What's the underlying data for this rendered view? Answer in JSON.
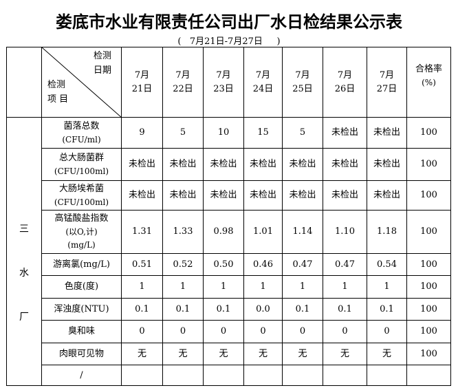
{
  "title": "娄底市水业有限责任公司出厂水日检结果公示表",
  "subtitle": "(   7月21日-7月27日     )",
  "header": {
    "diag_top": [
      "检测",
      "日期"
    ],
    "diag_bottom": [
      "检测",
      "项 目"
    ],
    "dates": [
      [
        "7月",
        "21日"
      ],
      [
        "7月",
        "22日"
      ],
      [
        "7月",
        "23日"
      ],
      [
        "7月",
        "24日"
      ],
      [
        "7月",
        "25日"
      ],
      [
        "7月",
        "26日"
      ],
      [
        "7月",
        "27日"
      ]
    ],
    "pass_rate": [
      "合格率",
      "(%)"
    ]
  },
  "plant": [
    "三",
    "水",
    "厂"
  ],
  "rows": [
    {
      "item": [
        "菌落总数",
        "(CFU/ml)"
      ],
      "values": [
        "9",
        "5",
        "10",
        "15",
        "5",
        "未检出",
        "未检出"
      ],
      "rate": "100"
    },
    {
      "item": [
        "总大肠菌群",
        "(CFU/100ml)"
      ],
      "values": [
        "未检出",
        "未检出",
        "未检出",
        "未检出",
        "未检出",
        "未检出",
        "未检出"
      ],
      "rate": "100"
    },
    {
      "item": [
        "大肠埃希菌",
        "(CFU/100ml)"
      ],
      "values": [
        "未检出",
        "未检出",
        "未检出",
        "未检出",
        "未检出",
        "未检出",
        "未检出"
      ],
      "rate": "100"
    },
    {
      "item": [
        "高锰酸盐指数",
        "(以O,计)",
        "(mg/L)"
      ],
      "values": [
        "1.31",
        "1.33",
        "0.98",
        "1.01",
        "1.14",
        "1.10",
        "1.18"
      ],
      "rate": "100"
    },
    {
      "item": [
        "游离氯(mg/L)"
      ],
      "values": [
        "0.51",
        "0.52",
        "0.50",
        "0.46",
        "0.47",
        "0.47",
        "0.54"
      ],
      "rate": "100"
    },
    {
      "item": [
        "色度(度)"
      ],
      "values": [
        "1",
        "1",
        "1",
        "1",
        "1",
        "1",
        "1"
      ],
      "rate": "100"
    },
    {
      "item": [
        "浑浊度(NTU)"
      ],
      "values": [
        "0.1",
        "0.1",
        "0.1",
        "0.0",
        "0.1",
        "0.1",
        "0.1"
      ],
      "rate": "100"
    },
    {
      "item": [
        "臭和味"
      ],
      "values": [
        "0",
        "0",
        "0",
        "0",
        "0",
        "0",
        "0"
      ],
      "rate": "100"
    },
    {
      "item": [
        "肉眼可见物"
      ],
      "values": [
        "无",
        "无",
        "无",
        "无",
        "无",
        "无",
        "无"
      ],
      "rate": "100"
    },
    {
      "item": [
        "/"
      ],
      "values": [
        "",
        "",
        "",
        "",
        "",
        "",
        ""
      ],
      "rate": ""
    }
  ]
}
